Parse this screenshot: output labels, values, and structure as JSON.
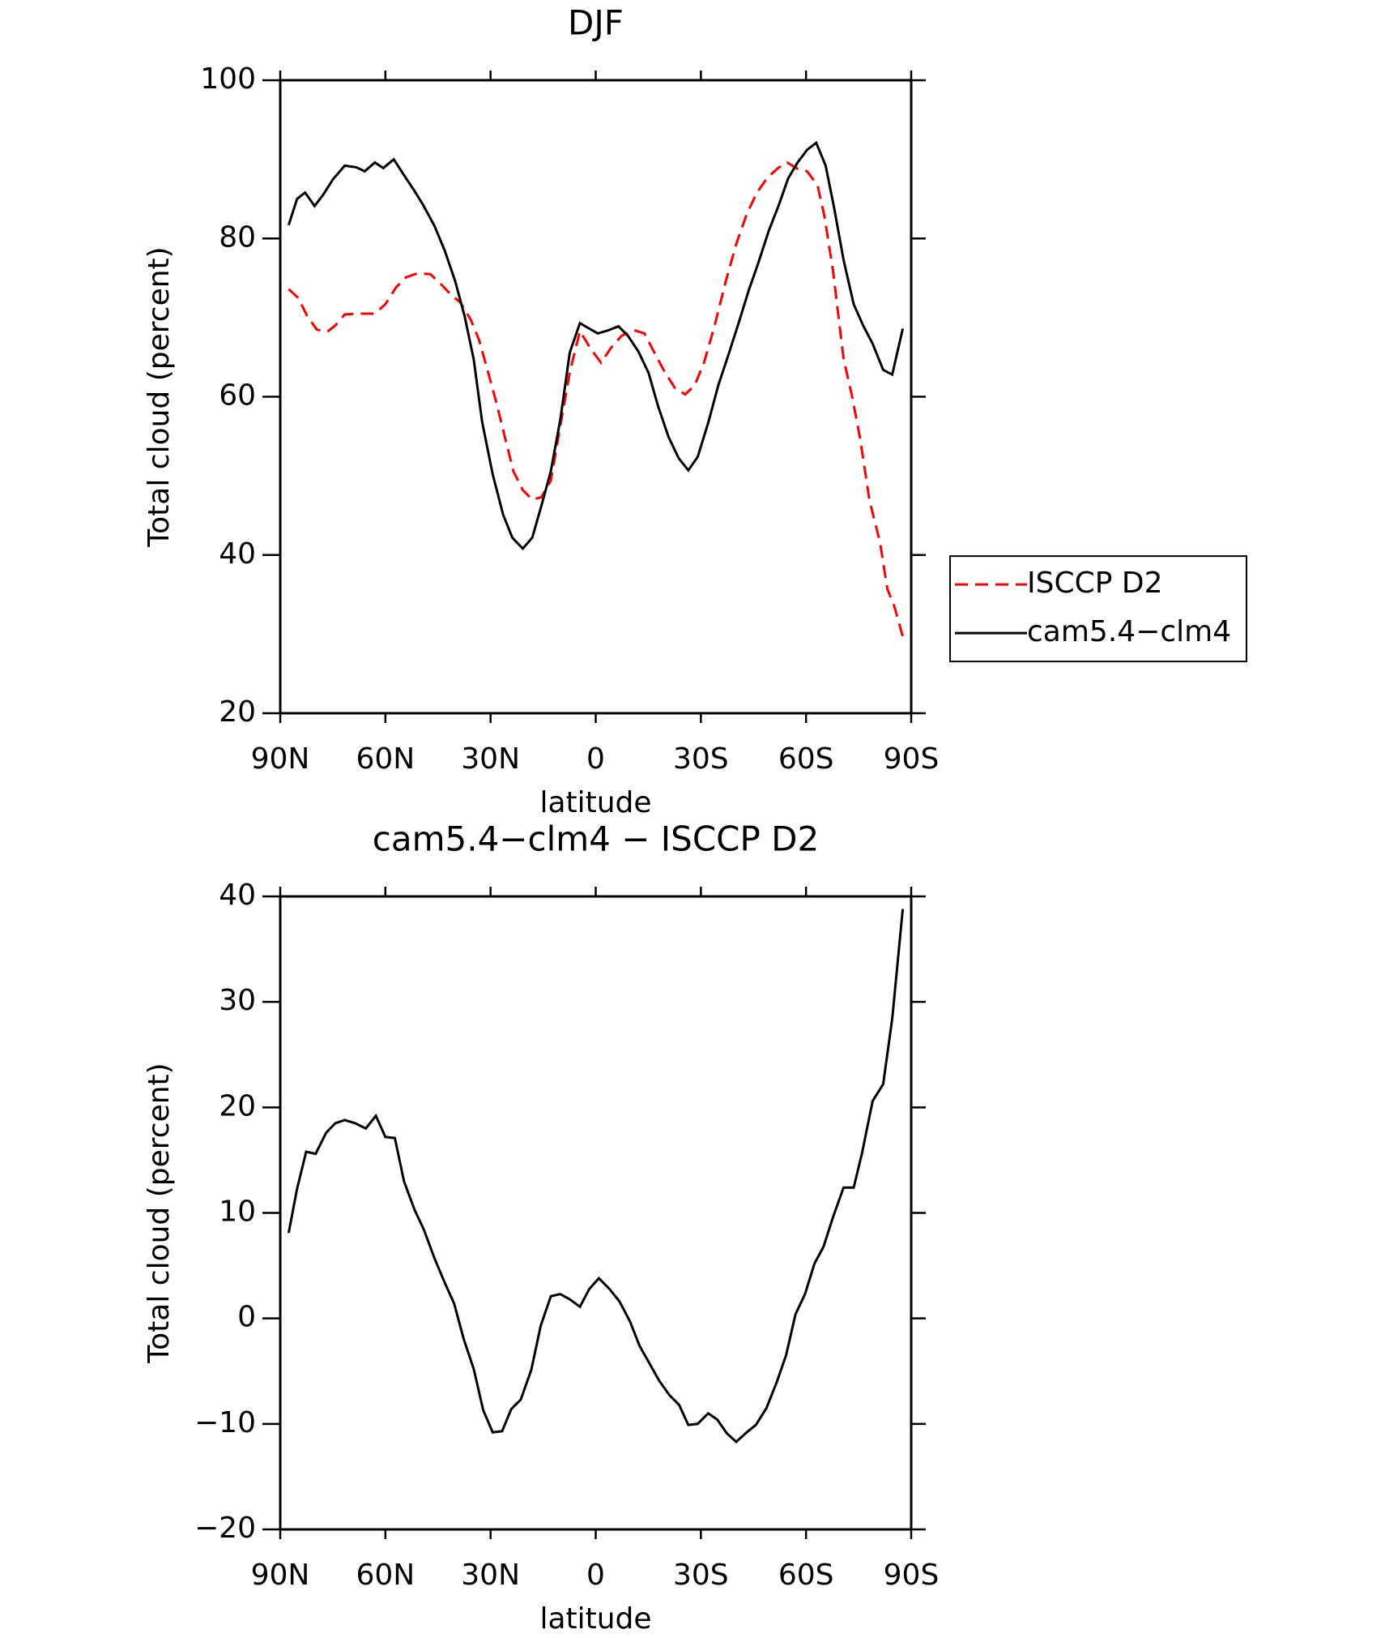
{
  "chart_data": [
    {
      "type": "line",
      "title": "DJF",
      "xlabel": "latitude",
      "ylabel": "Total cloud (percent)",
      "xlim": [
        90,
        -90
      ],
      "xticks": [
        {
          "value": 90,
          "label": "90N"
        },
        {
          "value": 60,
          "label": "60N"
        },
        {
          "value": 30,
          "label": "30N"
        },
        0,
        {
          "value": -30,
          "label": "30S"
        },
        {
          "value": -60,
          "label": "60S"
        },
        {
          "value": -90,
          "label": "90S"
        }
      ],
      "ylim": [
        20,
        100
      ],
      "yticks": [
        20,
        40,
        60,
        80,
        100
      ],
      "legend": "right",
      "series": [
        {
          "name": "ISCCP D2",
          "color": "#ff0000",
          "dash": true,
          "x": [
            87.6,
            84.9,
            82.3,
            79.6,
            76.6,
            74.3,
            71.6,
            68.3,
            65.9,
            63.0,
            60.0,
            57.0,
            54.1,
            50.8,
            47.2,
            44.3,
            41.3,
            38.6,
            35.6,
            33.3,
            30.9,
            28.2,
            25.8,
            23.5,
            20.8,
            18.1,
            15.5,
            12.8,
            10.1,
            7.4,
            4.5,
            1.5,
            -1.5,
            -4.4,
            -7.4,
            -11.0,
            -13.9,
            -16.6,
            -19.6,
            -22.6,
            -25.5,
            -28.2,
            -30.9,
            -33.8,
            -37.1,
            -40.1,
            -43.1,
            -46.0,
            -49.0,
            -52.0,
            -54.6,
            -57.6,
            -60.3,
            -63.3,
            -65.3,
            -67.7,
            -70.7,
            -73.1,
            -75.4,
            -78.1,
            -81.1,
            -83.2,
            -85.2,
            -87.6
          ],
          "values": [
            73.6,
            72.5,
            70.2,
            68.5,
            68.2,
            69.0,
            70.4,
            70.5,
            70.5,
            70.5,
            71.7,
            73.8,
            75.1,
            75.6,
            75.5,
            74.3,
            72.9,
            71.9,
            69.7,
            67.2,
            63.4,
            59.0,
            54.7,
            50.6,
            48.2,
            47.0,
            47.3,
            49.4,
            56.3,
            63.1,
            68.3,
            66.1,
            64.3,
            66.2,
            67.7,
            68.4,
            68.0,
            65.7,
            63.2,
            61.1,
            60.3,
            61.4,
            64.3,
            68.8,
            74.6,
            79.3,
            83.1,
            85.8,
            87.7,
            88.9,
            89.6,
            88.8,
            88.5,
            86.7,
            82.7,
            75.9,
            64.8,
            60.1,
            54.8,
            46.9,
            41.6,
            35.7,
            33.5,
            29.7
          ]
        },
        {
          "name": "cam5.4−clm4",
          "color": "#000000",
          "dash": false,
          "x": [
            87.6,
            85.2,
            82.9,
            80.2,
            77.8,
            74.9,
            71.6,
            68.3,
            65.9,
            63.0,
            60.6,
            57.6,
            54.7,
            51.7,
            49.3,
            46.0,
            43.1,
            40.1,
            37.4,
            34.8,
            32.4,
            29.4,
            26.4,
            23.8,
            20.8,
            18.1,
            15.5,
            12.8,
            10.1,
            7.4,
            4.5,
            1.8,
            -0.6,
            -3.6,
            -6.5,
            -9.2,
            -12.2,
            -15.1,
            -17.8,
            -20.8,
            -23.7,
            -26.4,
            -29.1,
            -32.1,
            -35.0,
            -38.0,
            -40.7,
            -43.7,
            -46.3,
            -49.3,
            -52.3,
            -54.9,
            -57.6,
            -60.3,
            -62.9,
            -65.6,
            -68.0,
            -70.7,
            -73.6,
            -76.3,
            -79.0,
            -82.0,
            -84.6,
            -87.6
          ],
          "values": [
            81.7,
            85.0,
            85.8,
            84.1,
            85.5,
            87.5,
            89.2,
            89.0,
            88.5,
            89.6,
            88.9,
            90.0,
            88.0,
            86.0,
            84.3,
            81.6,
            78.5,
            74.6,
            70.2,
            64.7,
            56.8,
            50.2,
            45.1,
            42.2,
            40.8,
            42.2,
            46.2,
            50.6,
            57.1,
            65.6,
            69.3,
            68.6,
            68.0,
            68.4,
            68.9,
            67.7,
            65.7,
            63.0,
            58.8,
            54.9,
            52.2,
            50.7,
            52.4,
            56.7,
            61.5,
            65.5,
            69.2,
            73.5,
            76.8,
            80.9,
            84.3,
            87.6,
            89.6,
            91.2,
            92.1,
            89.2,
            83.9,
            77.3,
            71.7,
            69.0,
            66.7,
            63.4,
            62.8,
            68.6
          ]
        }
      ]
    },
    {
      "type": "line",
      "title": "cam5.4−clm4 − ISCCP D2",
      "xlabel": "latitude",
      "ylabel": "Total cloud (percent)",
      "xlim": [
        90,
        -90
      ],
      "xticks": [
        {
          "value": 90,
          "label": "90N"
        },
        {
          "value": 60,
          "label": "60N"
        },
        {
          "value": 30,
          "label": "30N"
        },
        0,
        {
          "value": -30,
          "label": "30S"
        },
        {
          "value": -60,
          "label": "60S"
        },
        {
          "value": -90,
          "label": "90S"
        }
      ],
      "ylim": [
        -20,
        40
      ],
      "yticks": [
        {
          "value": -20,
          "label": "−20"
        },
        {
          "value": -10,
          "label": "−10"
        },
        0,
        10,
        20,
        30,
        40
      ],
      "series": [
        {
          "color": "#000000",
          "dash": false,
          "x": [
            87.6,
            85.2,
            82.6,
            79.9,
            76.9,
            74.3,
            71.6,
            68.6,
            65.6,
            62.7,
            60.0,
            57.3,
            54.7,
            51.7,
            49.0,
            46.0,
            43.1,
            40.4,
            37.7,
            34.8,
            32.1,
            29.4,
            26.7,
            24.1,
            21.4,
            18.4,
            15.7,
            12.8,
            10.1,
            7.4,
            4.5,
            1.8,
            -0.9,
            -3.9,
            -6.8,
            -9.8,
            -12.5,
            -15.4,
            -18.1,
            -21.1,
            -23.8,
            -26.4,
            -29.1,
            -32.1,
            -34.7,
            -37.4,
            -40.1,
            -43.1,
            -45.7,
            -48.7,
            -51.7,
            -54.3,
            -57.0,
            -59.7,
            -62.4,
            -65.0,
            -67.7,
            -70.7,
            -73.6,
            -76.0,
            -79.0,
            -82.0,
            -84.6,
            -87.6
          ],
          "values": [
            8.1,
            12.3,
            15.8,
            15.6,
            17.6,
            18.5,
            18.8,
            18.5,
            18.0,
            19.2,
            17.2,
            17.1,
            13.0,
            10.3,
            8.4,
            5.7,
            3.4,
            1.4,
            -1.9,
            -4.8,
            -8.7,
            -10.8,
            -10.7,
            -8.6,
            -7.7,
            -4.9,
            -0.7,
            2.1,
            2.3,
            1.8,
            1.1,
            2.8,
            3.8,
            2.8,
            1.6,
            -0.3,
            -2.6,
            -4.3,
            -5.9,
            -7.3,
            -8.2,
            -10.1,
            -10.0,
            -9.0,
            -9.6,
            -10.9,
            -11.7,
            -10.8,
            -10.1,
            -8.5,
            -6.0,
            -3.5,
            0.4,
            2.3,
            5.2,
            6.8,
            9.6,
            12.4,
            12.4,
            15.7,
            20.6,
            22.2,
            28.4,
            38.8
          ]
        }
      ]
    }
  ]
}
